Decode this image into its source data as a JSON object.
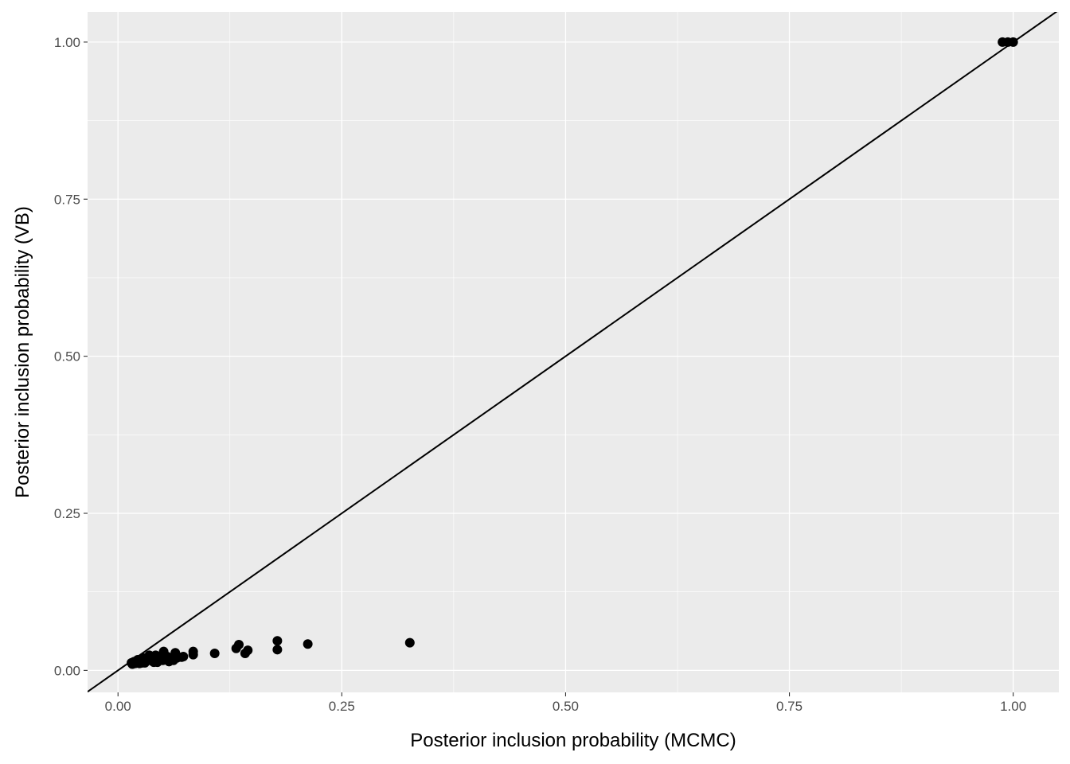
{
  "chart_data": {
    "type": "scatter",
    "title": "",
    "xlabel": "Posterior inclusion probability (MCMC)",
    "ylabel": "Posterior inclusion probability (VB)",
    "xlim": [
      -0.034,
      1.051
    ],
    "ylim": [
      -0.035,
      1.048
    ],
    "xticks": [
      0,
      0.25,
      0.5,
      0.75,
      1
    ],
    "xtick_labels": [
      "0.00",
      "0.25",
      "0.50",
      "0.75",
      "1.00"
    ],
    "yticks": [
      0,
      0.25,
      0.5,
      0.75,
      1
    ],
    "ytick_labels": [
      "0.00",
      "0.25",
      "0.50",
      "0.75",
      "1.00"
    ],
    "grid": true,
    "reference_line": {
      "intercept": 0,
      "slope": 1
    },
    "points": [
      [
        0.326,
        0.044
      ],
      [
        0.212,
        0.042
      ],
      [
        0.178,
        0.047
      ],
      [
        0.178,
        0.033
      ],
      [
        0.135,
        0.041
      ],
      [
        0.132,
        0.035
      ],
      [
        0.142,
        0.027
      ],
      [
        0.145,
        0.032
      ],
      [
        0.108,
        0.027
      ],
      [
        0.084,
        0.03
      ],
      [
        0.084,
        0.025
      ],
      [
        0.073,
        0.022
      ],
      [
        0.064,
        0.028
      ],
      [
        0.066,
        0.02
      ],
      [
        0.051,
        0.03
      ],
      [
        0.057,
        0.014
      ],
      [
        0.06,
        0.018
      ],
      [
        0.055,
        0.022
      ],
      [
        0.048,
        0.02
      ],
      [
        0.045,
        0.016
      ],
      [
        0.042,
        0.024
      ],
      [
        0.04,
        0.013
      ],
      [
        0.037,
        0.02
      ],
      [
        0.035,
        0.024
      ],
      [
        0.033,
        0.016
      ],
      [
        0.03,
        0.012
      ],
      [
        0.028,
        0.02
      ],
      [
        0.026,
        0.015
      ],
      [
        0.024,
        0.011
      ],
      [
        0.022,
        0.017
      ],
      [
        0.02,
        0.012
      ],
      [
        0.018,
        0.014
      ],
      [
        0.016,
        0.01
      ],
      [
        0.017,
        0.013
      ],
      [
        0.015,
        0.012
      ],
      [
        0.019,
        0.011
      ],
      [
        0.023,
        0.013
      ],
      [
        0.027,
        0.012
      ],
      [
        0.031,
        0.014
      ],
      [
        0.038,
        0.015
      ],
      [
        0.044,
        0.013
      ],
      [
        0.05,
        0.016
      ],
      [
        0.071,
        0.021
      ],
      [
        0.062,
        0.016
      ],
      [
        0.988,
        1.0
      ],
      [
        0.994,
        1.0
      ],
      [
        1.0,
        1.0
      ]
    ]
  }
}
